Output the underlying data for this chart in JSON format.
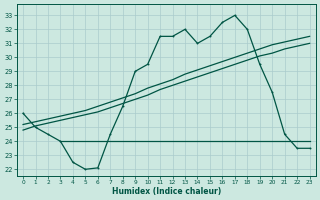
{
  "xlabel": "Humidex (Indice chaleur)",
  "bg_color": "#cce8e0",
  "line_color": "#005544",
  "grid_color": "#aacccc",
  "x_ticks": [
    0,
    1,
    2,
    3,
    4,
    5,
    6,
    7,
    8,
    9,
    10,
    11,
    12,
    13,
    14,
    15,
    16,
    17,
    18,
    19,
    20,
    21,
    22,
    23
  ],
  "y_ticks": [
    22,
    23,
    24,
    25,
    26,
    27,
    28,
    29,
    30,
    31,
    32,
    33
  ],
  "ylim": [
    21.5,
    33.8
  ],
  "xlim": [
    -0.5,
    23.5
  ],
  "curve1_x": [
    0,
    1,
    2,
    3,
    4,
    5,
    6,
    7,
    8,
    9,
    10,
    11,
    12,
    13,
    14,
    15,
    16,
    17,
    18,
    19,
    20,
    21,
    22,
    23
  ],
  "curve1_y": [
    26.0,
    25.0,
    24.5,
    24.0,
    22.5,
    22.0,
    22.1,
    24.5,
    26.5,
    29.0,
    29.5,
    31.5,
    31.5,
    32.0,
    31.0,
    31.5,
    32.5,
    33.0,
    32.0,
    29.5,
    27.5,
    24.5,
    23.5,
    23.5
  ],
  "curve2_x": [
    0,
    1,
    2,
    3,
    4,
    5,
    6,
    7,
    8,
    9,
    10,
    11,
    12,
    13,
    14,
    15,
    16,
    17,
    18,
    19,
    20,
    21,
    22,
    23
  ],
  "curve2_y": [
    24.8,
    25.1,
    25.3,
    25.5,
    25.7,
    25.9,
    26.1,
    26.4,
    26.7,
    27.0,
    27.3,
    27.7,
    28.0,
    28.3,
    28.6,
    28.9,
    29.2,
    29.5,
    29.8,
    30.1,
    30.3,
    30.6,
    30.8,
    31.0
  ],
  "curve3_x": [
    0,
    1,
    2,
    3,
    4,
    5,
    6,
    7,
    8,
    9,
    10,
    11,
    12,
    13,
    14,
    15,
    16,
    17,
    18,
    19,
    20,
    21,
    22,
    23
  ],
  "curve3_y": [
    25.2,
    25.4,
    25.6,
    25.8,
    26.0,
    26.2,
    26.5,
    26.8,
    27.1,
    27.4,
    27.8,
    28.1,
    28.4,
    28.8,
    29.1,
    29.4,
    29.7,
    30.0,
    30.3,
    30.6,
    30.9,
    31.1,
    31.3,
    31.5
  ],
  "curve4_x": [
    3,
    4,
    5,
    6,
    7,
    8,
    9,
    10,
    11,
    12,
    13,
    14,
    15,
    16,
    17,
    18,
    19,
    20,
    21,
    22,
    23
  ],
  "curve4_y": [
    24.0,
    24.0,
    24.0,
    24.0,
    24.0,
    24.0,
    24.0,
    24.0,
    24.0,
    24.0,
    24.0,
    24.0,
    24.0,
    24.0,
    24.0,
    24.0,
    24.0,
    24.0,
    24.0,
    24.0,
    24.0
  ]
}
